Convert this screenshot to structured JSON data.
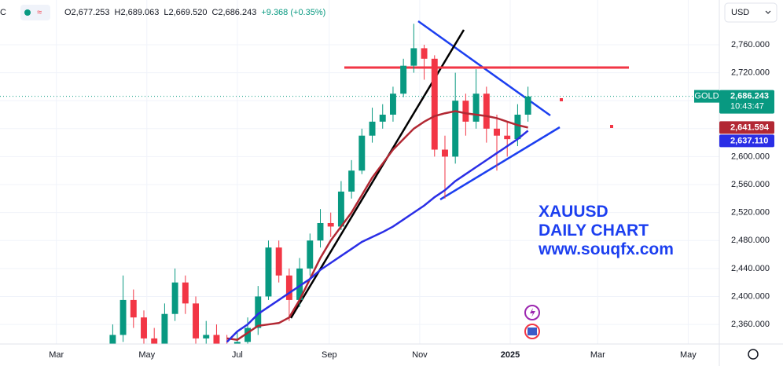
{
  "chart_data": {
    "type": "candlestick",
    "symbol_fragment": "C",
    "ohlc_header": [
      "O2,677.253",
      "H2,689.063",
      "L2,669.520",
      "C2,686.243",
      "+9.368 (+0.35%)"
    ],
    "currency": "USD",
    "annotations": [
      "XAUUSD",
      "DAILY CHART",
      "www.souqfx.com"
    ],
    "price_label": {
      "name": "GOLD",
      "value": 2686.243,
      "label": "2,686.243",
      "countdown": "10:43:47"
    },
    "up_color": "#089981",
    "down_color": "#f23645",
    "x": [
      98,
      105,
      112,
      119,
      126,
      133,
      140,
      147,
      154,
      161,
      168,
      175,
      182,
      189,
      196,
      203,
      210,
      217,
      224,
      231,
      238,
      245,
      252,
      259,
      266,
      273,
      280,
      287,
      294,
      301,
      308,
      315,
      322,
      329,
      336,
      343,
      350,
      357,
      364,
      371,
      378
    ],
    "open": [
      2330,
      2345,
      2395,
      2370,
      2340,
      2330,
      2375,
      2420,
      2390,
      2340,
      2345,
      2330,
      2325,
      2335,
      2355,
      2400,
      2470,
      2430,
      2395,
      2440,
      2480,
      2505,
      2500,
      2550,
      2580,
      2630,
      2650,
      2660,
      2690,
      2730,
      2755,
      2740,
      2610,
      2600,
      2680,
      2650,
      2690,
      2640,
      2630,
      2625,
      2660
    ],
    "high": [
      2360,
      2430,
      2410,
      2380,
      2355,
      2390,
      2440,
      2430,
      2400,
      2365,
      2360,
      2345,
      2350,
      2370,
      2415,
      2480,
      2480,
      2440,
      2455,
      2490,
      2525,
      2520,
      2565,
      2595,
      2640,
      2670,
      2675,
      2700,
      2740,
      2790,
      2760,
      2745,
      2630,
      2720,
      2690,
      2725,
      2700,
      2660,
      2650,
      2675,
      2700
    ],
    "low": [
      2320,
      2335,
      2355,
      2325,
      2310,
      2320,
      2365,
      2375,
      2325,
      2330,
      2315,
      2310,
      2315,
      2325,
      2345,
      2395,
      2420,
      2365,
      2385,
      2430,
      2470,
      2485,
      2495,
      2540,
      2575,
      2620,
      2640,
      2650,
      2685,
      2720,
      2710,
      2600,
      2540,
      2590,
      2630,
      2640,
      2620,
      2580,
      2600,
      2615,
      2650
    ],
    "close": [
      2345,
      2395,
      2370,
      2340,
      2330,
      2375,
      2420,
      2390,
      2340,
      2345,
      2330,
      2325,
      2335,
      2355,
      2400,
      2470,
      2430,
      2395,
      2440,
      2480,
      2505,
      2500,
      2550,
      2580,
      2630,
      2650,
      2660,
      2690,
      2730,
      2755,
      2740,
      2610,
      2600,
      2680,
      2650,
      2690,
      2640,
      2630,
      2625,
      2660,
      2686
    ],
    "overlays": [
      {
        "color": "#b22833",
        "value": 2641.594,
        "label": "2,641.594",
        "values": [
          null,
          null,
          null,
          null,
          null,
          null,
          null,
          null,
          null,
          null,
          null,
          2340,
          2338,
          2348,
          2358,
          2360,
          2362,
          2370,
          2395,
          2425,
          2455,
          2480,
          2500,
          2520,
          2545,
          2570,
          2590,
          2610,
          2625,
          2640,
          2650,
          2658,
          2662,
          2665,
          2662,
          2660,
          2658,
          2655,
          2650,
          2645,
          2641.594
        ]
      },
      {
        "color": "#2a2ee6",
        "value": 2637.11,
        "label": "2,637.110",
        "values": [
          null,
          null,
          null,
          null,
          null,
          null,
          null,
          null,
          null,
          null,
          null,
          2335,
          2350,
          2360,
          2375,
          2385,
          2395,
          2405,
          2415,
          2425,
          2438,
          2448,
          2458,
          2468,
          2478,
          2485,
          2492,
          2500,
          2510,
          2520,
          2530,
          2542,
          2552,
          2565,
          2575,
          2585,
          2595,
          2605,
          2615,
          2625,
          2637.11
        ]
      }
    ],
    "xlim": [
      22,
      507
    ],
    "xticks": [
      {
        "value": 60,
        "label": "Mar"
      },
      {
        "value": 121,
        "label": "May"
      },
      {
        "value": 182,
        "label": "Jul"
      },
      {
        "value": 244,
        "label": "Sep"
      },
      {
        "value": 305,
        "label": "Nov"
      },
      {
        "value": 366,
        "label": "2025"
      },
      {
        "value": 425,
        "label": "Mar"
      },
      {
        "value": 486,
        "label": "May"
      }
    ],
    "ylim": [
      2332,
      2824
    ],
    "yticks": [
      {
        "value": 2360,
        "label": "2,360.000"
      },
      {
        "value": 2400,
        "label": "2,400.000"
      },
      {
        "value": 2440,
        "label": "2,440.000"
      },
      {
        "value": 2480,
        "label": "2,480.000"
      },
      {
        "value": 2520,
        "label": "2,520.000"
      },
      {
        "value": 2560,
        "label": "2,560.000"
      },
      {
        "value": 2600,
        "label": "2,600.000"
      },
      {
        "value": 2640,
        "label": "2,640.000"
      },
      {
        "value": 2680,
        "label": "2,680.000"
      },
      {
        "value": 2720,
        "label": "2,720.000"
      },
      {
        "value": 2760,
        "label": "2,760.000"
      }
    ],
    "grid": true
  }
}
